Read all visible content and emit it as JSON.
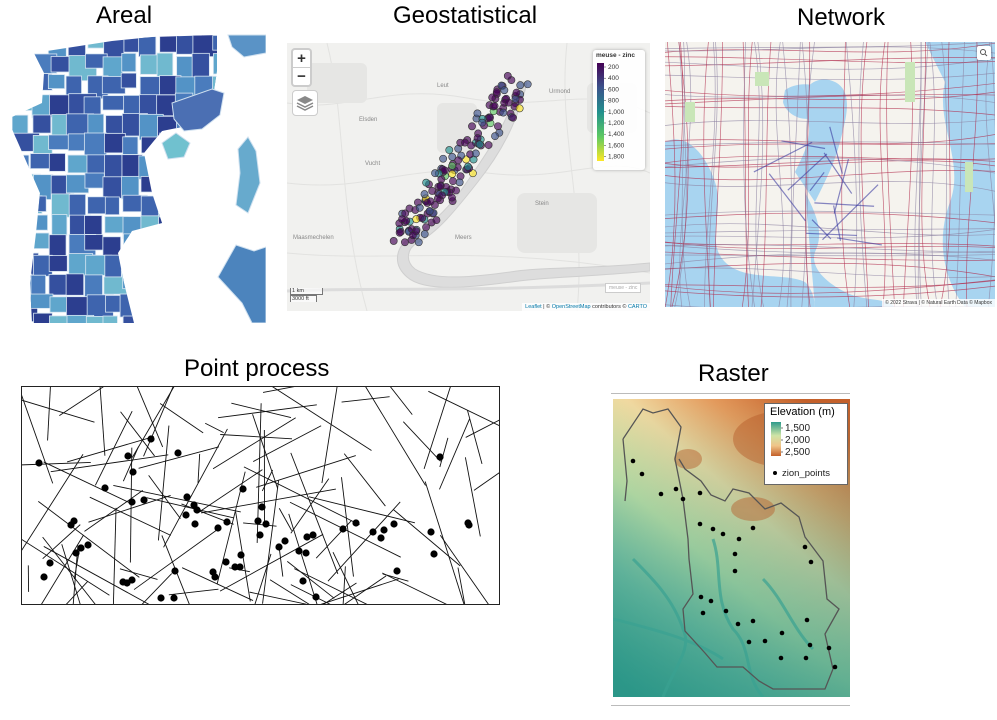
{
  "titles": {
    "areal": "Areal",
    "geostat": "Geostatistical",
    "network": "Network",
    "point": "Point process",
    "raster": "Raster"
  },
  "geostat": {
    "legend_title": "meuse - zinc",
    "legend_ticks": [
      "200",
      "400",
      "600",
      "800",
      "1,000",
      "1,200",
      "1,400",
      "1,600",
      "1,800"
    ],
    "places": [
      "Leut",
      "Urmond",
      "Elsden",
      "Vucht",
      "Stein",
      "Maasmechelen",
      "Meers"
    ],
    "zoom_in": "+",
    "zoom_out": "−",
    "scale_km": "1 km",
    "scale_ft": "3000 ft",
    "layer_tag": "meuse - zinc",
    "attr_leaflet": "Leaflet",
    "attr_mid": " | © ",
    "attr_osm": "OpenStreetMap",
    "attr_contrib": " contributors © ",
    "attr_carto": "CARTO",
    "colors": [
      "#440154",
      "#3b528b",
      "#21908d",
      "#5dc963",
      "#fde725"
    ]
  },
  "network": {
    "attribution": "© 2022 Strava | © Natural Earth Data © Mapbox"
  },
  "raster": {
    "legend_title": "Elevation (m)",
    "legend_ticks": [
      "1,500",
      "2,000",
      "2,500"
    ],
    "points_label": "zion_points"
  }
}
